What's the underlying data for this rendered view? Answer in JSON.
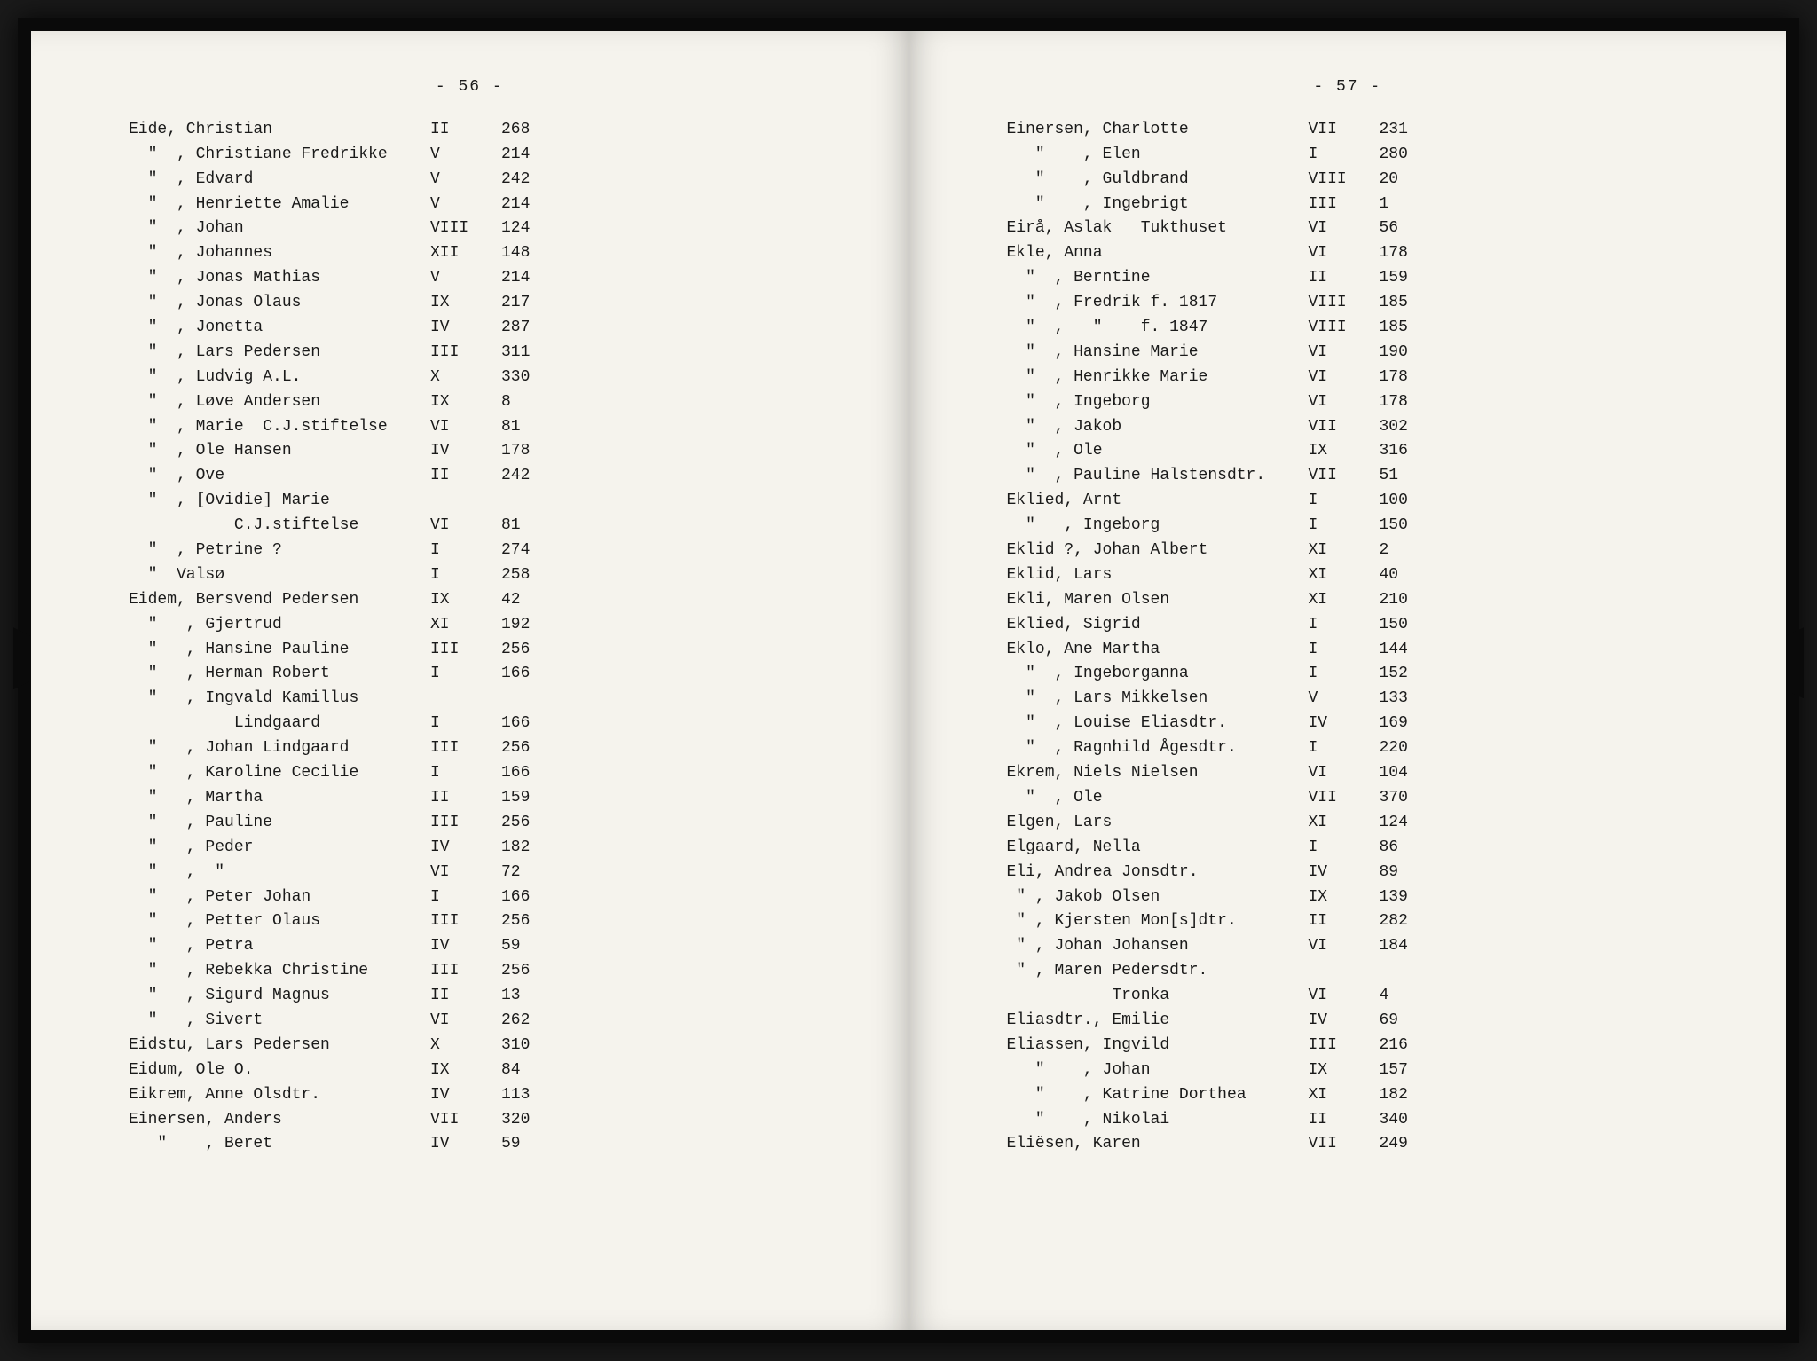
{
  "leftPage": {
    "pageNumber": "- 56 -",
    "entries": [
      {
        "name": "Eide, Christian",
        "vol": "II",
        "num": "268"
      },
      {
        "name": "  \"  , Christiane Fredrikke",
        "vol": "V",
        "num": "214"
      },
      {
        "name": "  \"  , Edvard",
        "vol": "V",
        "num": "242"
      },
      {
        "name": "  \"  , Henriette Amalie",
        "vol": "V",
        "num": "214"
      },
      {
        "name": "  \"  , Johan",
        "vol": "VIII",
        "num": "124"
      },
      {
        "name": "  \"  , Johannes",
        "vol": "XII",
        "num": "148"
      },
      {
        "name": "  \"  , Jonas Mathias",
        "vol": "V",
        "num": "214"
      },
      {
        "name": "  \"  , Jonas Olaus",
        "vol": "IX",
        "num": "217"
      },
      {
        "name": "  \"  , Jonetta",
        "vol": "IV",
        "num": "287"
      },
      {
        "name": "  \"  , Lars Pedersen",
        "vol": "III",
        "num": "311"
      },
      {
        "name": "  \"  , Ludvig A.L.",
        "vol": "X",
        "num": "330"
      },
      {
        "name": "  \"  , Løve Andersen",
        "vol": "IX",
        "num": "8"
      },
      {
        "name": "  \"  , Marie  C.J.stiftelse",
        "vol": "VI",
        "num": "81"
      },
      {
        "name": "  \"  , Ole Hansen",
        "vol": "IV",
        "num": "178"
      },
      {
        "name": "  \"  , Ove",
        "vol": "II",
        "num": "242"
      },
      {
        "name": "  \"  , [Ovidie] Marie",
        "vol": "",
        "num": ""
      },
      {
        "name": "           C.J.stiftelse",
        "vol": "VI",
        "num": "81"
      },
      {
        "name": "  \"  , Petrine ?",
        "vol": "I",
        "num": "274"
      },
      {
        "name": "  \"  Valsø",
        "vol": "I",
        "num": "258"
      },
      {
        "name": "Eidem, Bersvend Pedersen",
        "vol": "IX",
        "num": "42"
      },
      {
        "name": "  \"   , Gjertrud",
        "vol": "XI",
        "num": "192"
      },
      {
        "name": "  \"   , Hansine Pauline",
        "vol": "III",
        "num": "256"
      },
      {
        "name": "  \"   , Herman Robert",
        "vol": "I",
        "num": "166"
      },
      {
        "name": "  \"   , Ingvald Kamillus",
        "vol": "",
        "num": ""
      },
      {
        "name": "           Lindgaard",
        "vol": "I",
        "num": "166"
      },
      {
        "name": "  \"   , Johan Lindgaard",
        "vol": "III",
        "num": "256"
      },
      {
        "name": "  \"   , Karoline Cecilie",
        "vol": "I",
        "num": "166"
      },
      {
        "name": "  \"   , Martha",
        "vol": "II",
        "num": "159"
      },
      {
        "name": "  \"   , Pauline",
        "vol": "III",
        "num": "256"
      },
      {
        "name": "  \"   , Peder",
        "vol": "IV",
        "num": "182"
      },
      {
        "name": "  \"   ,  \"",
        "vol": "VI",
        "num": "72"
      },
      {
        "name": "  \"   , Peter Johan",
        "vol": "I",
        "num": "166"
      },
      {
        "name": "  \"   , Petter Olaus",
        "vol": "III",
        "num": "256"
      },
      {
        "name": "  \"   , Petra",
        "vol": "IV",
        "num": "59"
      },
      {
        "name": "  \"   , Rebekka Christine",
        "vol": "III",
        "num": "256"
      },
      {
        "name": "  \"   , Sigurd Magnus",
        "vol": "II",
        "num": "13"
      },
      {
        "name": "  \"   , Sivert",
        "vol": "VI",
        "num": "262"
      },
      {
        "name": "Eidstu, Lars Pedersen",
        "vol": "X",
        "num": "310"
      },
      {
        "name": "Eidum, Ole O.",
        "vol": "IX",
        "num": "84"
      },
      {
        "name": "Eikrem, Anne Olsdtr.",
        "vol": "IV",
        "num": "113"
      },
      {
        "name": "Einersen, Anders",
        "vol": "VII",
        "num": "320"
      },
      {
        "name": "   \"    , Beret",
        "vol": "IV",
        "num": "59"
      }
    ]
  },
  "rightPage": {
    "pageNumber": "- 57 -",
    "entries": [
      {
        "name": "Einersen, Charlotte",
        "vol": "VII",
        "num": "231"
      },
      {
        "name": "   \"    , Elen",
        "vol": "I",
        "num": "280"
      },
      {
        "name": "   \"    , Guldbrand",
        "vol": "VIII",
        "num": "20"
      },
      {
        "name": "   \"    , Ingebrigt",
        "vol": "III",
        "num": "1"
      },
      {
        "name": "Eirå, Aslak   Tukthuset",
        "vol": "VI",
        "num": "56"
      },
      {
        "name": "Ekle, Anna",
        "vol": "VI",
        "num": "178"
      },
      {
        "name": "  \"  , Berntine",
        "vol": "II",
        "num": "159"
      },
      {
        "name": "  \"  , Fredrik f. 1817",
        "vol": "VIII",
        "num": "185"
      },
      {
        "name": "  \"  ,   \"    f. 1847",
        "vol": "VIII",
        "num": "185"
      },
      {
        "name": "  \"  , Hansine Marie",
        "vol": "VI",
        "num": "190"
      },
      {
        "name": "  \"  , Henrikke Marie",
        "vol": "VI",
        "num": "178"
      },
      {
        "name": "  \"  , Ingeborg",
        "vol": "VI",
        "num": "178"
      },
      {
        "name": "  \"  , Jakob",
        "vol": "VII",
        "num": "302"
      },
      {
        "name": "  \"  , Ole",
        "vol": "IX",
        "num": "316"
      },
      {
        "name": "  \"  , Pauline Halstensdtr.",
        "vol": "VII",
        "num": "51"
      },
      {
        "name": "Eklied, Arnt",
        "vol": "I",
        "num": "100"
      },
      {
        "name": "  \"   , Ingeborg",
        "vol": "I",
        "num": "150"
      },
      {
        "name": "Eklid ?, Johan Albert",
        "vol": "XI",
        "num": "2"
      },
      {
        "name": "Eklid, Lars",
        "vol": "XI",
        "num": "40"
      },
      {
        "name": "Ekli, Maren Olsen",
        "vol": "XI",
        "num": "210"
      },
      {
        "name": "Eklied, Sigrid",
        "vol": "I",
        "num": "150"
      },
      {
        "name": "Eklo, Ane Martha",
        "vol": "I",
        "num": "144"
      },
      {
        "name": "  \"  , Ingeborganna",
        "vol": "I",
        "num": "152"
      },
      {
        "name": "  \"  , Lars Mikkelsen",
        "vol": "V",
        "num": "133"
      },
      {
        "name": "  \"  , Louise Eliasdtr.",
        "vol": "IV",
        "num": "169"
      },
      {
        "name": "  \"  , Ragnhild Ågesdtr.",
        "vol": "I",
        "num": "220"
      },
      {
        "name": "Ekrem, Niels Nielsen",
        "vol": "VI",
        "num": "104"
      },
      {
        "name": "  \"  , Ole",
        "vol": "VII",
        "num": "370"
      },
      {
        "name": "Elgen, Lars",
        "vol": "XI",
        "num": "124"
      },
      {
        "name": "Elgaard, Nella",
        "vol": "I",
        "num": "86"
      },
      {
        "name": "Eli, Andrea Jonsdtr.",
        "vol": "IV",
        "num": "89"
      },
      {
        "name": " \" , Jakob Olsen",
        "vol": "IX",
        "num": "139"
      },
      {
        "name": " \" , Kjersten Mon[s]dtr.",
        "vol": "II",
        "num": "282"
      },
      {
        "name": " \" , Johan Johansen",
        "vol": "VI",
        "num": "184"
      },
      {
        "name": " \" , Maren Pedersdtr.",
        "vol": "",
        "num": ""
      },
      {
        "name": "           Tronka",
        "vol": "VI",
        "num": "4"
      },
      {
        "name": "Eliasdtr., Emilie",
        "vol": "IV",
        "num": "69"
      },
      {
        "name": "Eliassen, Ingvild",
        "vol": "III",
        "num": "216"
      },
      {
        "name": "   \"    , Johan",
        "vol": "IX",
        "num": "157"
      },
      {
        "name": "   \"    , Katrine Dorthea",
        "vol": "XI",
        "num": "182"
      },
      {
        "name": "   \"    , Nikolai",
        "vol": "II",
        "num": "340"
      },
      {
        "name": "Eliësen, Karen",
        "vol": "VII",
        "num": "249"
      }
    ]
  }
}
